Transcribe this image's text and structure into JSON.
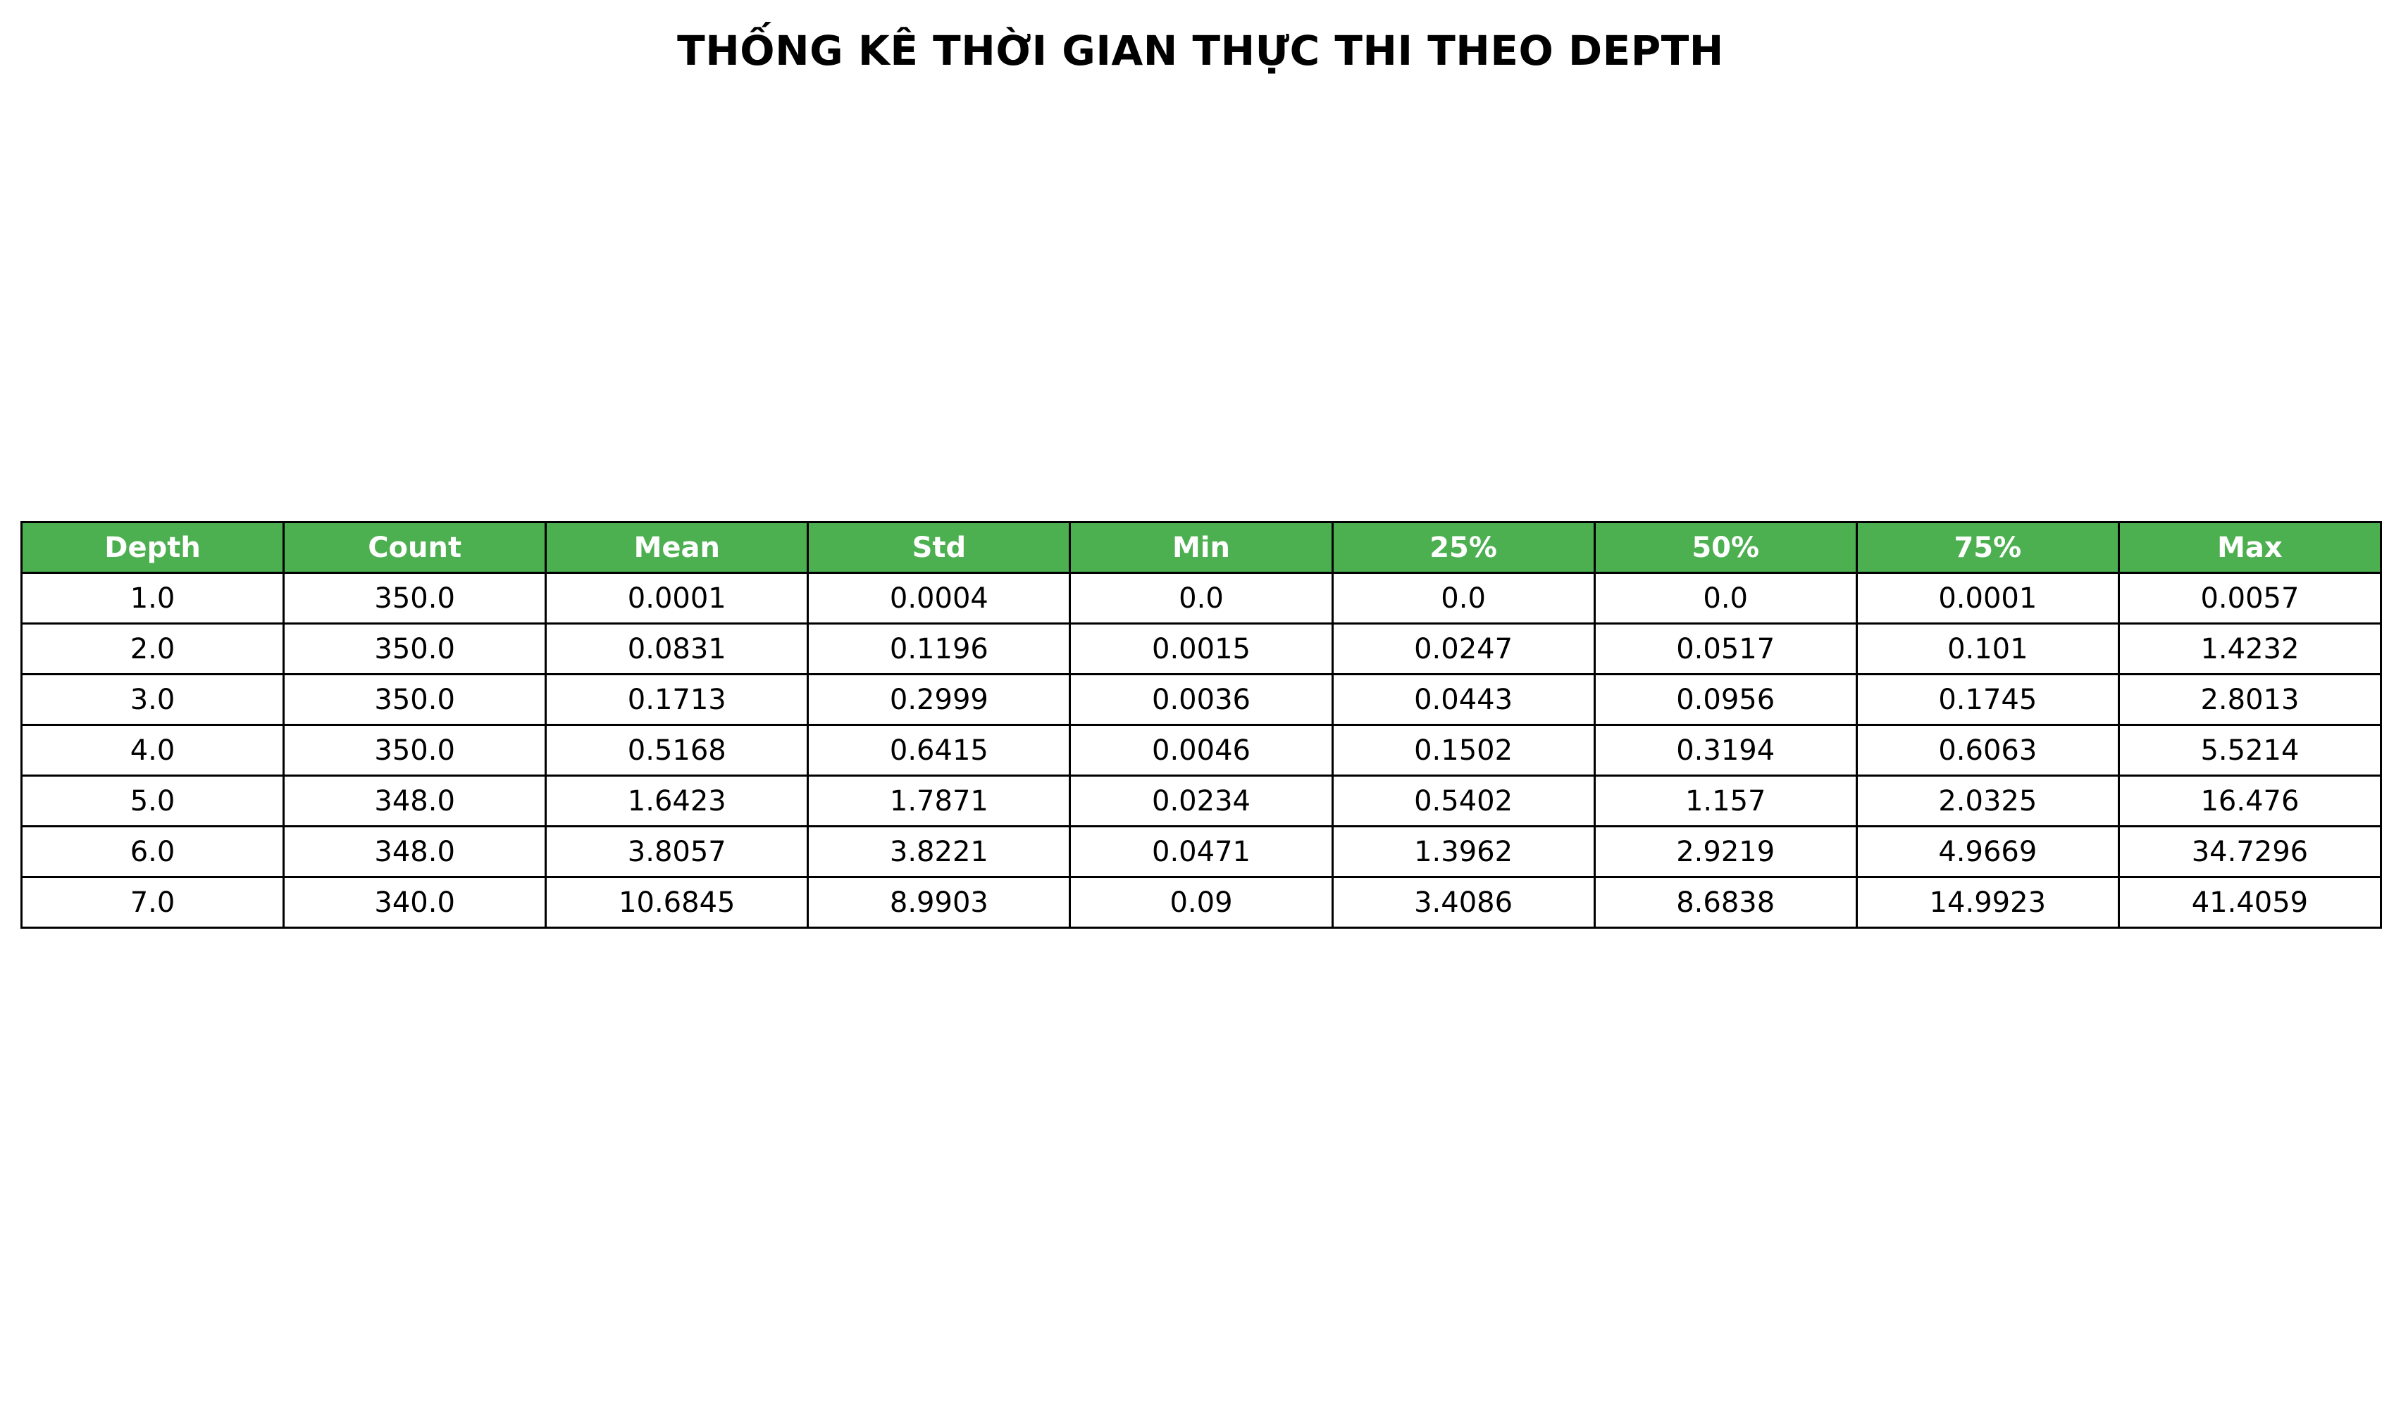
{
  "title": "THỐNG KÊ THỜI GIAN THỰC THI THEO DEPTH",
  "colors": {
    "header_background": "#4caf50",
    "header_text": "#ffffff",
    "cell_background": "#ffffff",
    "border": "#000000"
  },
  "chart_data": {
    "type": "table",
    "title": "THỐNG KÊ THỜI GIAN THỰC THI THEO DEPTH",
    "columns": [
      "Depth",
      "Count",
      "Mean",
      "Std",
      "Min",
      "25%",
      "50%",
      "75%",
      "Max"
    ],
    "rows": [
      [
        "1.0",
        "350.0",
        "0.0001",
        "0.0004",
        "0.0",
        "0.0",
        "0.0",
        "0.0001",
        "0.0057"
      ],
      [
        "2.0",
        "350.0",
        "0.0831",
        "0.1196",
        "0.0015",
        "0.0247",
        "0.0517",
        "0.101",
        "1.4232"
      ],
      [
        "3.0",
        "350.0",
        "0.1713",
        "0.2999",
        "0.0036",
        "0.0443",
        "0.0956",
        "0.1745",
        "2.8013"
      ],
      [
        "4.0",
        "350.0",
        "0.5168",
        "0.6415",
        "0.0046",
        "0.1502",
        "0.3194",
        "0.6063",
        "5.5214"
      ],
      [
        "5.0",
        "348.0",
        "1.6423",
        "1.7871",
        "0.0234",
        "0.5402",
        "1.157",
        "2.0325",
        "16.476"
      ],
      [
        "6.0",
        "348.0",
        "3.8057",
        "3.8221",
        "0.0471",
        "1.3962",
        "2.9219",
        "4.9669",
        "34.7296"
      ],
      [
        "7.0",
        "340.0",
        "10.6845",
        "8.9903",
        "0.09",
        "3.4086",
        "8.6838",
        "14.9923",
        "41.4059"
      ]
    ]
  }
}
